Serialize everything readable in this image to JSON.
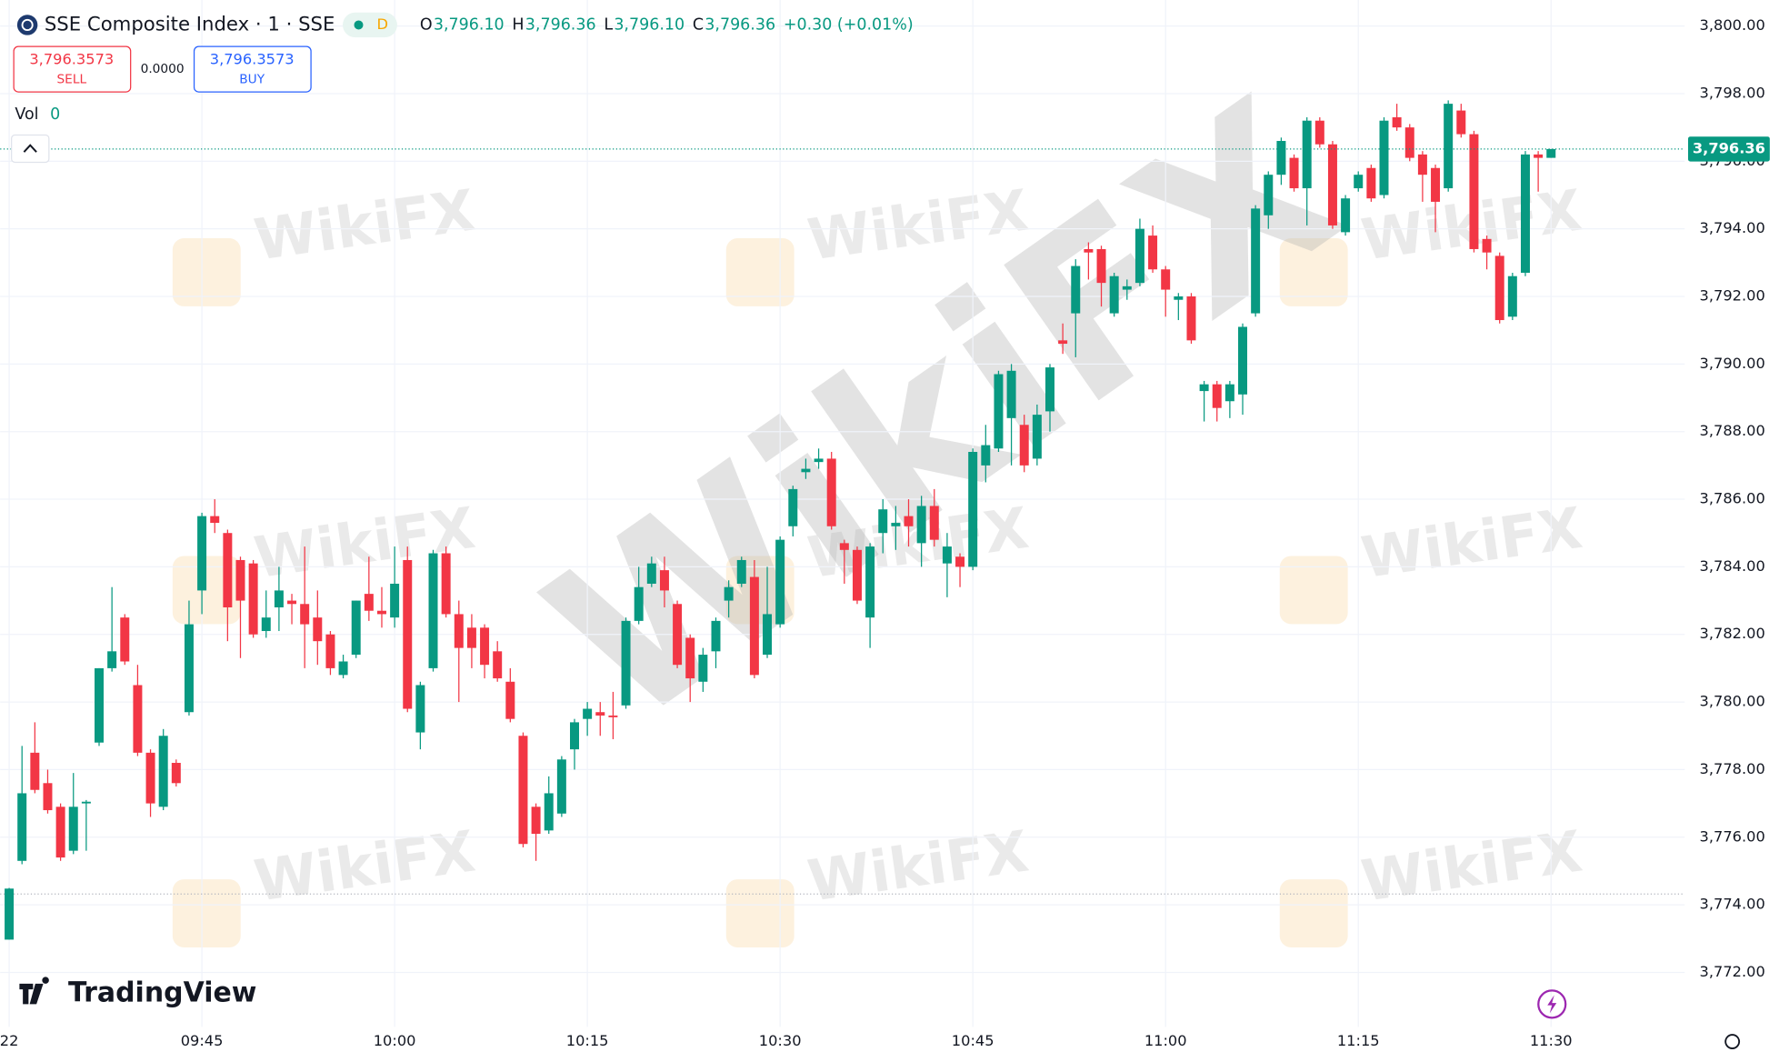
{
  "header": {
    "market_status": "D",
    "ohlc": [
      {
        "key": "O",
        "value": "3,796.10"
      },
      {
        "key": "H",
        "value": "3,796.36"
      },
      {
        "key": "L",
        "value": "3,796.10"
      },
      {
        "key": "C",
        "value": "3,796.36"
      }
    ],
    "change": "+0.30 (+0.01%)"
  },
  "trade": {
    "sell_price": "3,796.3573",
    "sell": "SELL",
    "spread": "0.0000",
    "buy_price": "3,796.3573",
    "buy": "BUY"
  },
  "volume": {
    "label": "Vol",
    "value": "0"
  },
  "branding": "TradingView",
  "watermark": "WikiFX",
  "chart_data": {
    "type": "candlestick",
    "title": "SSE Composite Index · 1 · SSE",
    "up_color": "#089981",
    "down_color": "#f23645",
    "grid": true,
    "xlim": [
      -0.7,
      130.4
    ],
    "xticks": [
      {
        "value": 0,
        "label": "22"
      },
      {
        "value": 15,
        "label": "09:45"
      },
      {
        "value": 30,
        "label": "10:00"
      },
      {
        "value": 45,
        "label": "10:15"
      },
      {
        "value": 60,
        "label": "10:30"
      },
      {
        "value": 75,
        "label": "10:45"
      },
      {
        "value": 90,
        "label": "11:00"
      },
      {
        "value": 105,
        "label": "11:15"
      },
      {
        "value": 120,
        "label": "11:30"
      }
    ],
    "ylim": [
      3770.39,
      3800.77
    ],
    "yticks": [
      {
        "value": 3772,
        "label": "3,772.00"
      },
      {
        "value": 3774,
        "label": "3,774.00"
      },
      {
        "value": 3776,
        "label": "3,776.00"
      },
      {
        "value": 3778,
        "label": "3,778.00"
      },
      {
        "value": 3780,
        "label": "3,780.00"
      },
      {
        "value": 3782,
        "label": "3,782.00"
      },
      {
        "value": 3784,
        "label": "3,784.00"
      },
      {
        "value": 3786,
        "label": "3,786.00"
      },
      {
        "value": 3788,
        "label": "3,788.00"
      },
      {
        "value": 3790,
        "label": "3,790.00"
      },
      {
        "value": 3792,
        "label": "3,792.00"
      },
      {
        "value": 3794,
        "label": "3,794.00"
      },
      {
        "value": 3796,
        "label": "3,796.00"
      },
      {
        "value": 3798,
        "label": "3,798.00"
      },
      {
        "value": 3800,
        "label": "3,800.00"
      }
    ],
    "last_price": {
      "value": 3796.36,
      "label": "3,796.36"
    },
    "reference_line": 3774.32,
    "open": [
      3772.97,
      3775.3,
      3778.5,
      3777.6,
      3776.9,
      3775.6,
      3777.0,
      3778.8,
      3781.0,
      3782.5,
      3780.5,
      3778.5,
      3776.9,
      3778.2,
      3779.7,
      3783.3,
      3785.5,
      3785.0,
      3784.2,
      3784.1,
      3782.1,
      3782.8,
      3783.0,
      3782.9,
      3782.5,
      3782.0,
      3780.8,
      3781.4,
      3783.2,
      3782.7,
      3782.5,
      3784.2,
      3779.1,
      3781.0,
      3784.4,
      3782.6,
      3782.2,
      3782.2,
      3781.5,
      3780.6,
      3779.0,
      3776.9,
      3776.2,
      3776.7,
      3778.6,
      3779.5,
      3779.7,
      3779.6,
      3779.9,
      3782.4,
      3783.5,
      3783.9,
      3782.9,
      3781.9,
      3780.6,
      3781.5,
      3783.0,
      3783.5,
      3783.7,
      3781.4,
      3782.3,
      3785.2,
      3786.8,
      3787.1,
      3787.2,
      3784.7,
      3784.5,
      3782.5,
      3785.0,
      3785.2,
      3785.5,
      3784.7,
      3785.8,
      3784.1,
      3784.3,
      3784.0,
      3787.0,
      3787.5,
      3788.4,
      3788.2,
      3787.2,
      3788.6,
      3790.7,
      3791.5,
      3793.4,
      3793.4,
      3791.5,
      3792.2,
      3792.4,
      3793.8,
      3792.8,
      3791.9,
      3792.0,
      3789.2,
      3789.4,
      3788.9,
      3789.1,
      3791.5,
      3794.4,
      3795.6,
      3796.1,
      3795.2,
      3797.2,
      3796.5,
      3793.9,
      3795.2,
      3795.8,
      3795.0,
      3797.3,
      3797.0,
      3796.2,
      3795.8,
      3795.2,
      3797.5,
      3796.8,
      3793.7,
      3793.2,
      3791.4,
      3792.7,
      3796.2,
      3796.1
    ],
    "high": [
      3774.5,
      3778.7,
      3779.4,
      3778.0,
      3777.0,
      3777.9,
      3777.1,
      3781.0,
      3783.4,
      3782.6,
      3781.1,
      3778.6,
      3779.2,
      3778.3,
      3783.0,
      3785.6,
      3786.0,
      3785.1,
      3784.3,
      3784.2,
      3783.3,
      3784.0,
      3783.2,
      3784.6,
      3783.3,
      3782.1,
      3781.4,
      3783.0,
      3784.3,
      3783.4,
      3784.6,
      3784.6,
      3780.6,
      3784.5,
      3784.6,
      3783.0,
      3782.6,
      3782.3,
      3781.8,
      3781.0,
      3779.1,
      3777.0,
      3777.8,
      3778.4,
      3779.5,
      3780.0,
      3780.0,
      3780.3,
      3782.5,
      3784.0,
      3784.3,
      3784.3,
      3783.0,
      3782.0,
      3781.6,
      3782.5,
      3783.6,
      3784.3,
      3784.2,
      3784.0,
      3784.9,
      3786.4,
      3787.2,
      3787.5,
      3787.4,
      3784.8,
      3784.6,
      3784.7,
      3786.0,
      3785.8,
      3786.0,
      3786.1,
      3786.3,
      3785.0,
      3784.4,
      3787.5,
      3788.2,
      3789.8,
      3790.0,
      3788.5,
      3788.8,
      3790.0,
      3791.2,
      3793.1,
      3793.6,
      3793.5,
      3792.7,
      3792.5,
      3794.3,
      3794.1,
      3792.9,
      3792.1,
      3792.1,
      3789.5,
      3789.5,
      3789.5,
      3791.2,
      3794.7,
      3795.7,
      3796.7,
      3796.2,
      3797.3,
      3797.3,
      3796.6,
      3795.0,
      3795.7,
      3795.9,
      3797.3,
      3797.7,
      3797.1,
      3796.3,
      3795.9,
      3797.8,
      3797.7,
      3796.9,
      3793.8,
      3793.3,
      3792.7,
      3796.3,
      3796.3,
      3796.36
    ],
    "low": [
      3772.97,
      3775.2,
      3777.3,
      3776.7,
      3775.3,
      3775.5,
      3775.6,
      3778.7,
      3780.9,
      3781.1,
      3778.4,
      3776.6,
      3776.8,
      3777.5,
      3779.6,
      3782.6,
      3785.0,
      3781.8,
      3781.3,
      3781.9,
      3781.9,
      3782.1,
      3782.3,
      3781.0,
      3781.1,
      3780.8,
      3780.7,
      3781.3,
      3782.4,
      3782.2,
      3782.2,
      3779.7,
      3778.6,
      3780.9,
      3782.5,
      3780.0,
      3781.0,
      3780.7,
      3780.6,
      3779.4,
      3775.7,
      3775.3,
      3776.1,
      3776.6,
      3778.0,
      3779.0,
      3779.0,
      3778.9,
      3779.8,
      3782.3,
      3783.4,
      3782.8,
      3781.0,
      3780.0,
      3780.3,
      3781.0,
      3782.5,
      3783.4,
      3780.7,
      3781.3,
      3782.2,
      3784.9,
      3786.6,
      3786.9,
      3785.1,
      3783.5,
      3782.9,
      3781.6,
      3784.4,
      3784.5,
      3784.6,
      3784.0,
      3784.6,
      3783.1,
      3783.4,
      3783.9,
      3786.5,
      3787.4,
      3787.0,
      3786.8,
      3787.0,
      3788.0,
      3790.3,
      3790.2,
      3792.5,
      3791.7,
      3791.4,
      3791.9,
      3792.3,
      3792.7,
      3791.4,
      3791.3,
      3790.6,
      3788.3,
      3788.3,
      3788.4,
      3788.5,
      3791.4,
      3794.0,
      3795.3,
      3795.1,
      3794.1,
      3796.4,
      3794.0,
      3793.8,
      3795.1,
      3794.8,
      3794.9,
      3796.9,
      3796.0,
      3794.8,
      3793.9,
      3795.1,
      3796.7,
      3793.3,
      3792.8,
      3791.2,
      3791.3,
      3792.6,
      3795.1,
      3796.1
    ],
    "close": [
      3774.48,
      3777.3,
      3777.4,
      3776.8,
      3775.4,
      3776.9,
      3777.05,
      3781.0,
      3781.5,
      3781.2,
      3778.5,
      3777.0,
      3779.0,
      3777.6,
      3782.3,
      3785.5,
      3785.3,
      3782.8,
      3783.0,
      3782.0,
      3782.5,
      3783.3,
      3782.9,
      3782.3,
      3781.8,
      3781.0,
      3781.2,
      3783.0,
      3782.7,
      3782.6,
      3783.5,
      3779.8,
      3780.5,
      3784.4,
      3782.6,
      3781.6,
      3781.6,
      3781.1,
      3780.7,
      3779.5,
      3775.8,
      3776.1,
      3777.3,
      3778.3,
      3779.4,
      3779.8,
      3779.6,
      3779.55,
      3782.4,
      3783.4,
      3784.1,
      3783.3,
      3781.1,
      3780.7,
      3781.4,
      3782.4,
      3783.4,
      3784.2,
      3780.8,
      3782.6,
      3784.8,
      3786.3,
      3786.9,
      3787.2,
      3785.2,
      3784.5,
      3783.0,
      3784.6,
      3785.7,
      3785.3,
      3785.2,
      3785.8,
      3784.8,
      3784.6,
      3784.0,
      3787.4,
      3787.6,
      3789.7,
      3789.8,
      3787.0,
      3788.5,
      3789.9,
      3790.6,
      3792.9,
      3793.3,
      3792.4,
      3792.6,
      3792.3,
      3794.0,
      3792.8,
      3792.2,
      3792.0,
      3790.7,
      3789.4,
      3788.7,
      3789.4,
      3791.1,
      3794.6,
      3795.6,
      3796.6,
      3795.2,
      3797.2,
      3796.5,
      3794.1,
      3794.9,
      3795.6,
      3794.9,
      3797.2,
      3797.0,
      3796.1,
      3795.6,
      3794.8,
      3797.7,
      3796.8,
      3793.4,
      3793.3,
      3791.3,
      3792.6,
      3796.2,
      3796.1,
      3796.36
    ]
  }
}
